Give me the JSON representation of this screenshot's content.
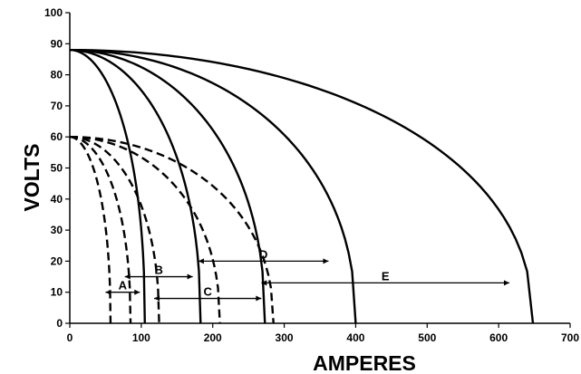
{
  "chart_data": {
    "type": "line",
    "xlabel": "AMPERES",
    "ylabel": "VOLTS",
    "xlim": [
      0,
      700
    ],
    "ylim": [
      0,
      100
    ],
    "x_ticks": [
      0,
      100,
      200,
      300,
      400,
      500,
      600,
      700
    ],
    "y_ticks": [
      0,
      10,
      20,
      30,
      40,
      50,
      60,
      70,
      80,
      90,
      100
    ],
    "grid": false,
    "legend": "none",
    "curves": [
      {
        "style": "solid",
        "open_circuit_volts": 88,
        "short_circuit_amps": 105
      },
      {
        "style": "solid",
        "open_circuit_volts": 88,
        "short_circuit_amps": 183
      },
      {
        "style": "solid",
        "open_circuit_volts": 88,
        "short_circuit_amps": 273
      },
      {
        "style": "solid",
        "open_circuit_volts": 88,
        "short_circuit_amps": 400
      },
      {
        "style": "solid",
        "open_circuit_volts": 88,
        "short_circuit_amps": 648
      },
      {
        "style": "dashed",
        "open_circuit_volts": 60,
        "short_circuit_amps": 57
      },
      {
        "style": "dashed",
        "open_circuit_volts": 60,
        "short_circuit_amps": 85
      },
      {
        "style": "dashed",
        "open_circuit_volts": 60,
        "short_circuit_amps": 125
      },
      {
        "style": "dashed",
        "open_circuit_volts": 60,
        "short_circuit_amps": 210
      },
      {
        "style": "dashed",
        "open_circuit_volts": 60,
        "short_circuit_amps": 285
      }
    ],
    "ranges": [
      {
        "label": "A",
        "y": 10,
        "x_from": 50,
        "x_to": 98
      },
      {
        "label": "B",
        "y": 15,
        "x_from": 77,
        "x_to": 172
      },
      {
        "label": "C",
        "y": 8,
        "x_from": 118,
        "x_to": 268
      },
      {
        "label": "D",
        "y": 20,
        "x_from": 180,
        "x_to": 362
      },
      {
        "label": "E",
        "y": 13,
        "x_from": 268,
        "x_to": 615
      }
    ]
  }
}
